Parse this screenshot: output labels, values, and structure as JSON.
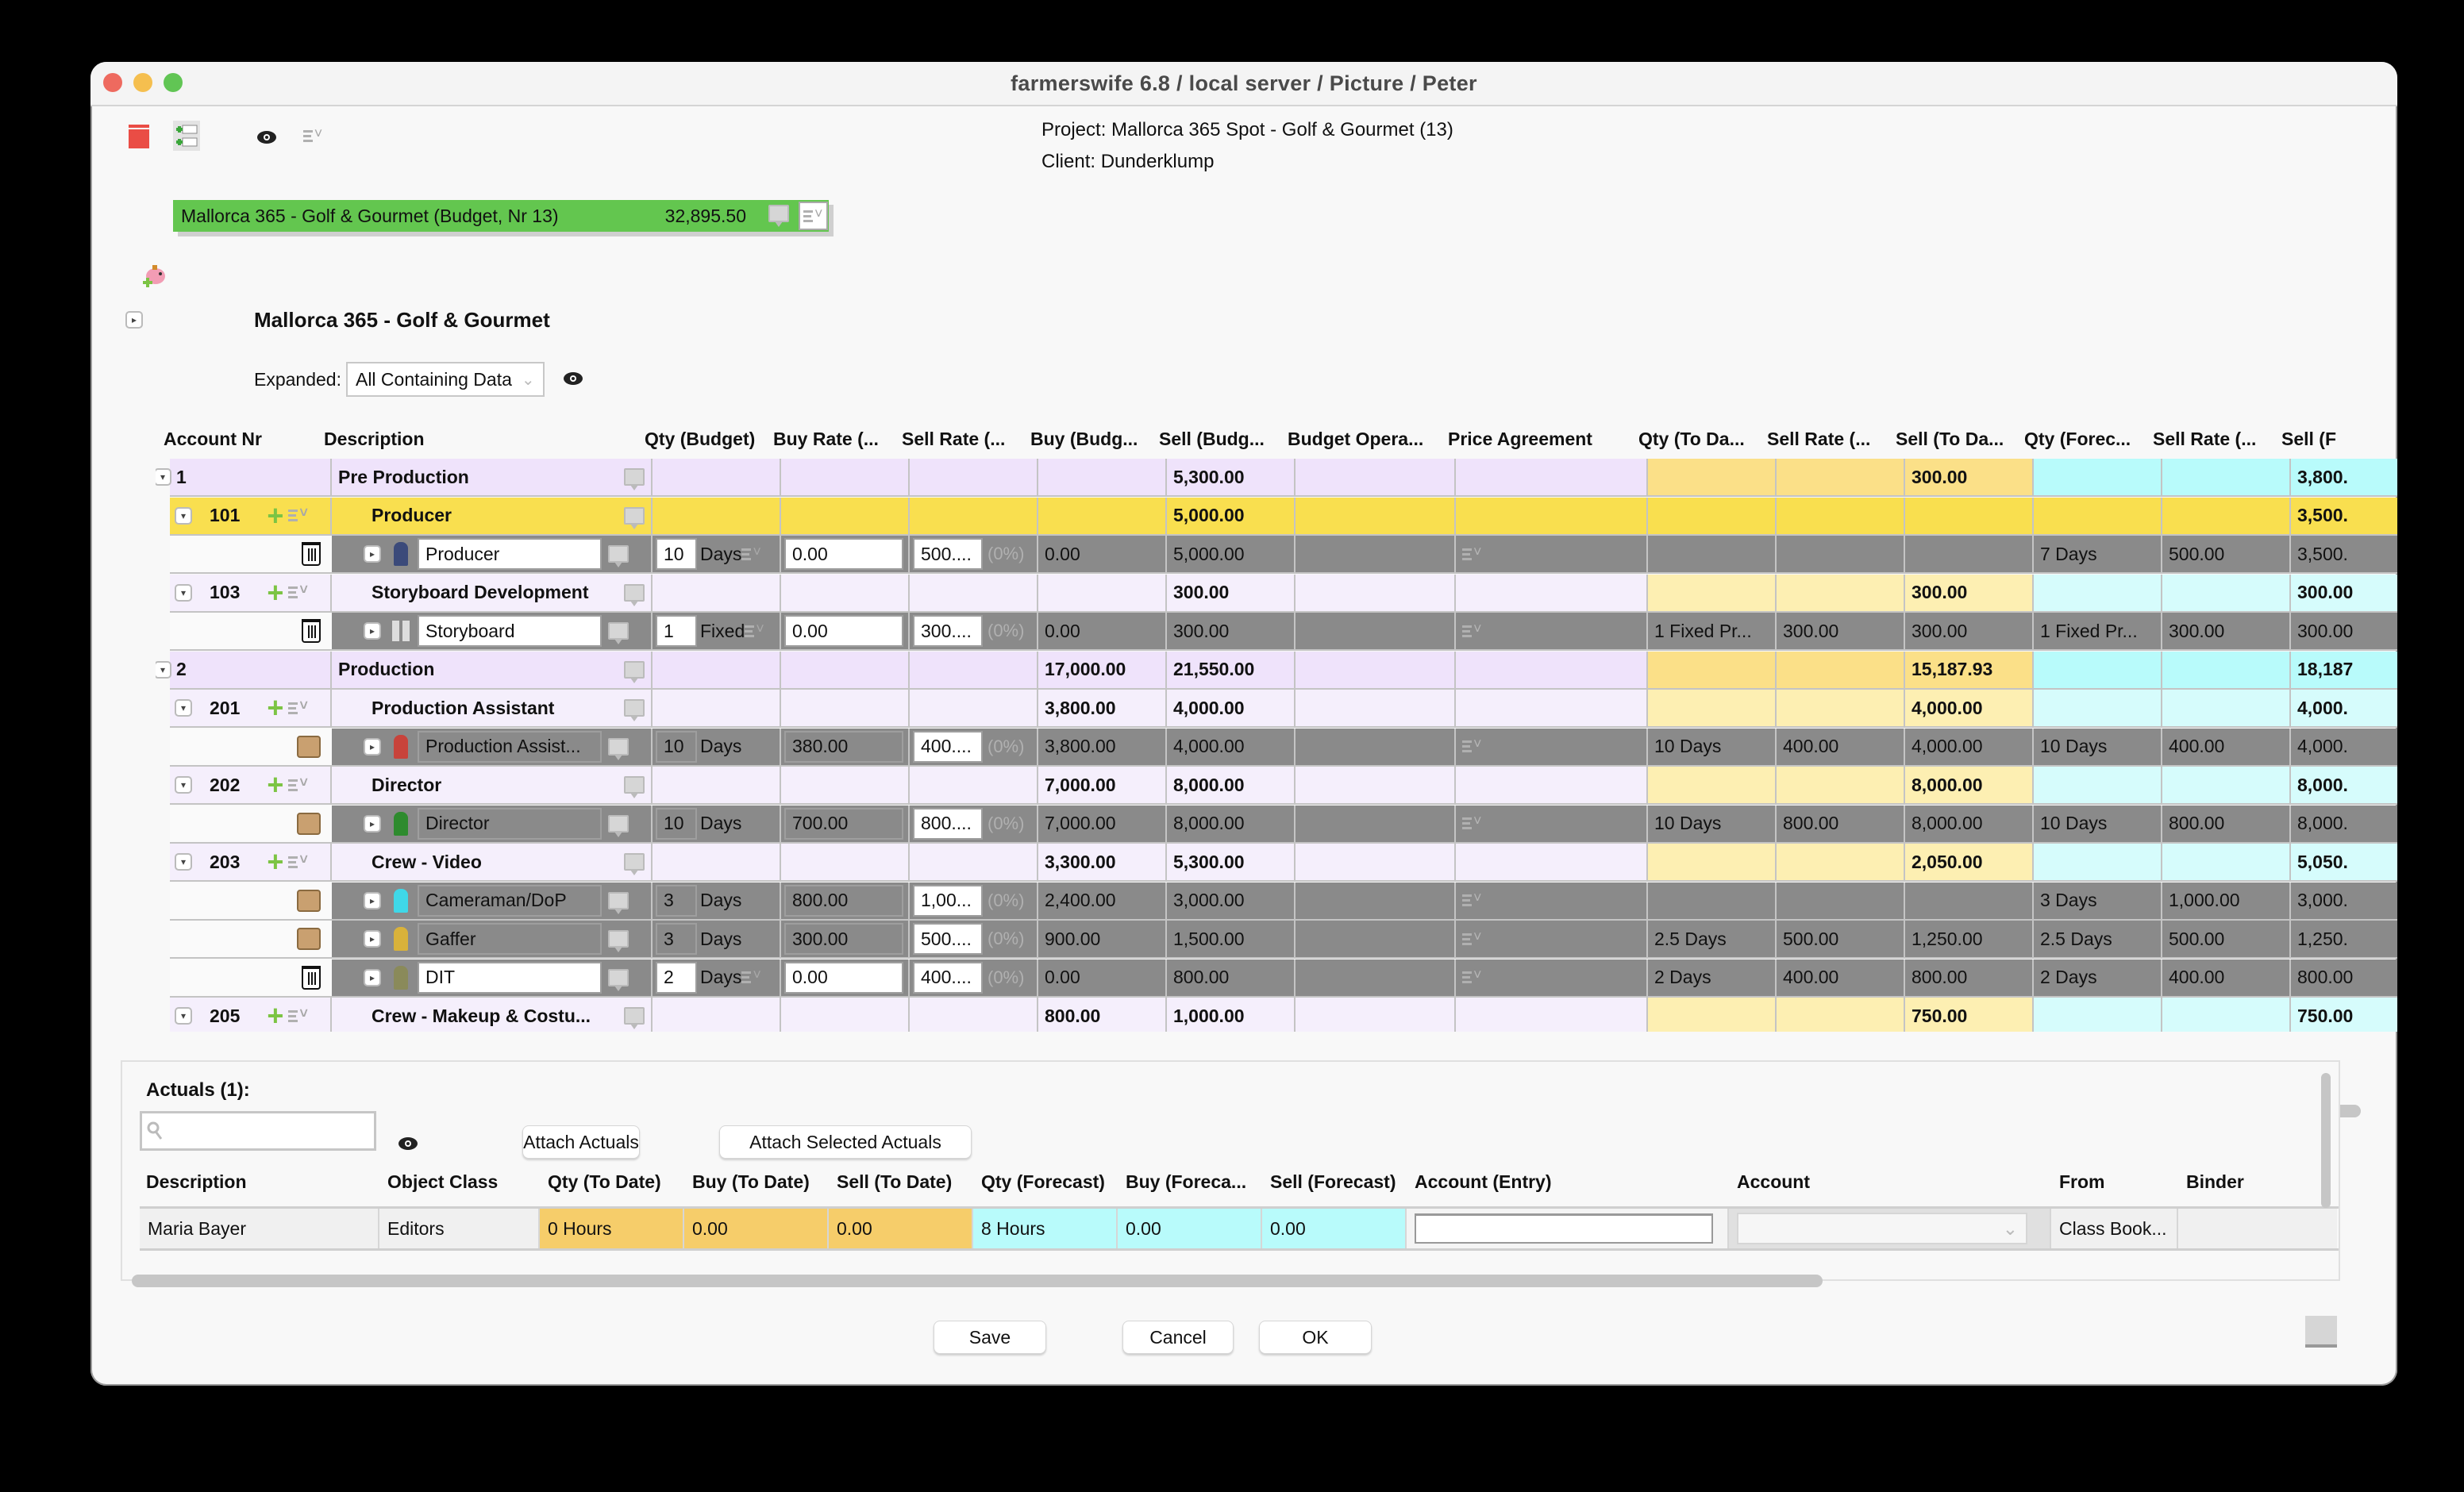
{
  "window": {
    "title": "farmerswife 6.8   / local server / Picture / Peter"
  },
  "toolbar": {
    "icons": [
      "calendar-icon",
      "add-rows-icon",
      "eye-icon",
      "menu-options-icon"
    ]
  },
  "project": {
    "project_line": "Project: Mallorca 365 Spot - Golf & Gourmet (13)",
    "client_line": "Client: Dunderklump",
    "budget_name": "Mallorca 365 - Golf & Gourmet (Budget, Nr 13)",
    "budget_total": "32,895.50",
    "title": "Mallorca 365 - Golf & Gourmet",
    "expanded_label": "Expanded:",
    "expanded_value": "All Containing Data"
  },
  "colors": {
    "budget_green": "#63c64f",
    "group_lavender": "#efe3fb",
    "selected_yellow": "#f9df4f",
    "todate_yellow": "#fdefb2",
    "forecast_cyan": "#b8fbfb",
    "item_gray": "#8a8a8a"
  },
  "grid": {
    "headers": [
      "Account Nr",
      "Description",
      "Qty (Budget)",
      "Buy Rate (...",
      "Sell Rate (...",
      "Buy (Budg...",
      "Sell (Budg...",
      "Budget Opera...",
      "Price Agreement",
      "Qty (To Da...",
      "Sell Rate (...",
      "Sell (To Da...",
      "Qty (Forec...",
      "Sell Rate (...",
      "Sell (F"
    ],
    "rows": [
      {
        "type": "category",
        "acct": "1",
        "desc": "Pre Production",
        "buy_b": "",
        "sell_b": "5,300.00",
        "qty_td": "",
        "rate_td": "",
        "sell_td": "300.00",
        "qty_fc": "",
        "rate_fc": "",
        "sell_fc": "3,800."
      },
      {
        "type": "account-selected",
        "acct": "101",
        "desc": "Producer",
        "buy_b": "",
        "sell_b": "5,000.00",
        "qty_td": "",
        "rate_td": "",
        "sell_td": "",
        "qty_fc": "",
        "rate_fc": "",
        "sell_fc": "3,500."
      },
      {
        "type": "item",
        "icon": "producer-icon",
        "action": "trash",
        "desc": "Producer",
        "qty": "10",
        "unit": "Days",
        "buy_rate": "0.00",
        "sell_rate": "500....",
        "pct": "(0%)",
        "buy_b": "0.00",
        "sell_b": "5,000.00",
        "qty_td": "",
        "rate_td": "",
        "sell_td": "",
        "qty_fc": "7 Days",
        "rate_fc": "500.00",
        "sell_fc": "3,500.",
        "editable": true
      },
      {
        "type": "account",
        "acct": "103",
        "desc": "Storyboard Development",
        "buy_b": "",
        "sell_b": "300.00",
        "qty_td": "",
        "rate_td": "",
        "sell_td": "300.00",
        "qty_fc": "",
        "rate_fc": "",
        "sell_fc": "300.00"
      },
      {
        "type": "item",
        "icon": "storyboard-icon",
        "action": "trash",
        "desc": "Storyboard",
        "qty": "1",
        "unit": "Fixed",
        "buy_rate": "0.00",
        "sell_rate": "300....",
        "pct": "(0%)",
        "buy_b": "0.00",
        "sell_b": "300.00",
        "qty_td": "1 Fixed Pr...",
        "rate_td": "300.00",
        "sell_td": "300.00",
        "qty_fc": "1 Fixed Pr...",
        "rate_fc": "300.00",
        "sell_fc": "300.00",
        "editable": true
      },
      {
        "type": "category",
        "acct": "2",
        "desc": "Production",
        "buy_b": "17,000.00",
        "sell_b": "21,550.00",
        "qty_td": "",
        "rate_td": "",
        "sell_td": "15,187.93",
        "qty_fc": "",
        "rate_fc": "",
        "sell_fc": "18,187"
      },
      {
        "type": "account",
        "acct": "201",
        "desc": "Production Assistant",
        "buy_b": "3,800.00",
        "sell_b": "4,000.00",
        "qty_td": "",
        "rate_td": "",
        "sell_td": "4,000.00",
        "qty_fc": "",
        "rate_fc": "",
        "sell_fc": "4,000."
      },
      {
        "type": "item",
        "icon": "production-assistant-icon",
        "action": "handshake",
        "desc": "Production Assist...",
        "qty": "10",
        "unit": "Days",
        "buy_rate": "380.00",
        "sell_rate": "400....",
        "pct": "(0%)",
        "buy_b": "3,800.00",
        "sell_b": "4,000.00",
        "qty_td": "10 Days",
        "rate_td": "400.00",
        "sell_td": "4,000.00",
        "qty_fc": "10 Days",
        "rate_fc": "400.00",
        "sell_fc": "4,000.",
        "editable": false
      },
      {
        "type": "account",
        "acct": "202",
        "desc": "Director",
        "buy_b": "7,000.00",
        "sell_b": "8,000.00",
        "qty_td": "",
        "rate_td": "",
        "sell_td": "8,000.00",
        "qty_fc": "",
        "rate_fc": "",
        "sell_fc": "8,000."
      },
      {
        "type": "item",
        "icon": "director-icon",
        "action": "handshake",
        "desc": "Director",
        "qty": "10",
        "unit": "Days",
        "buy_rate": "700.00",
        "sell_rate": "800....",
        "pct": "(0%)",
        "buy_b": "7,000.00",
        "sell_b": "8,000.00",
        "qty_td": "10 Days",
        "rate_td": "800.00",
        "sell_td": "8,000.00",
        "qty_fc": "10 Days",
        "rate_fc": "800.00",
        "sell_fc": "8,000.",
        "editable": false
      },
      {
        "type": "account",
        "acct": "203",
        "desc": "Crew - Video",
        "buy_b": "3,300.00",
        "sell_b": "5,300.00",
        "qty_td": "",
        "rate_td": "",
        "sell_td": "2,050.00",
        "qty_fc": "",
        "rate_fc": "",
        "sell_fc": "5,050."
      },
      {
        "type": "item",
        "icon": "cameraman-icon",
        "action": "handshake",
        "desc": "Cameraman/DoP",
        "qty": "3",
        "unit": "Days",
        "buy_rate": "800.00",
        "sell_rate": "1,00...",
        "pct": "(0%)",
        "buy_b": "2,400.00",
        "sell_b": "3,000.00",
        "qty_td": "",
        "rate_td": "",
        "sell_td": "",
        "qty_fc": "3 Days",
        "rate_fc": "1,000.00",
        "sell_fc": "3,000.",
        "editable": false
      },
      {
        "type": "item",
        "icon": "gaffer-icon",
        "action": "handshake",
        "desc": "Gaffer",
        "qty": "3",
        "unit": "Days",
        "buy_rate": "300.00",
        "sell_rate": "500....",
        "pct": "(0%)",
        "buy_b": "900.00",
        "sell_b": "1,500.00",
        "qty_td": "2.5 Days",
        "rate_td": "500.00",
        "sell_td": "1,250.00",
        "qty_fc": "2.5 Days",
        "rate_fc": "500.00",
        "sell_fc": "1,250.",
        "editable": false
      },
      {
        "type": "item",
        "icon": "dit-icon",
        "action": "trash",
        "desc": "DIT",
        "qty": "2",
        "unit": "Days",
        "buy_rate": "0.00",
        "sell_rate": "400....",
        "pct": "(0%)",
        "buy_b": "0.00",
        "sell_b": "800.00",
        "qty_td": "2 Days",
        "rate_td": "400.00",
        "sell_td": "800.00",
        "qty_fc": "2 Days",
        "rate_fc": "400.00",
        "sell_fc": "800.00",
        "editable": true
      },
      {
        "type": "account",
        "acct": "205",
        "desc": "Crew - Makeup & Costu...",
        "buy_b": "800.00",
        "sell_b": "1,000.00",
        "qty_td": "",
        "rate_td": "",
        "sell_td": "750.00",
        "qty_fc": "",
        "rate_fc": "",
        "sell_fc": "750.00"
      }
    ]
  },
  "actuals": {
    "title": "Actuals (1):",
    "search_placeholder": "",
    "attach_actuals": "Attach Actuals",
    "attach_selected": "Attach Selected Actuals",
    "headers": [
      "Description",
      "Object Class",
      "Qty (To Date)",
      "Buy (To Date)",
      "Sell (To Date)",
      "Qty (Forecast)",
      "Buy (Foreca...",
      "Sell (Forecast)",
      "Account (Entry)",
      "Account",
      "From",
      "Binder"
    ],
    "rows": [
      {
        "description": "Maria Bayer",
        "object_class": "Editors",
        "qty_td": "0 Hours",
        "buy_td": "0.00",
        "sell_td": "0.00",
        "qty_fc": "8 Hours",
        "buy_fc": "0.00",
        "sell_fc": "0.00",
        "account_entry": "",
        "account": "",
        "from": "Class Book...",
        "binder": ""
      }
    ]
  },
  "footer": {
    "save": "Save",
    "cancel": "Cancel",
    "ok": "OK"
  }
}
